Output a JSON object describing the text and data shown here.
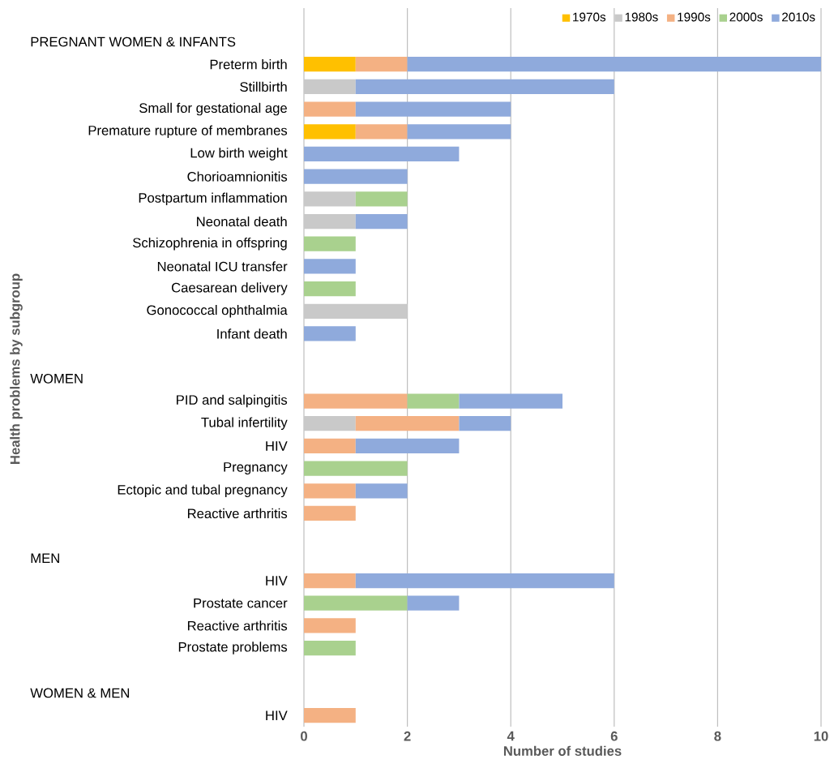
{
  "chart_data": {
    "type": "bar",
    "orientation": "horizontal",
    "stacked": true,
    "xlabel": "Number of studies",
    "ylabel": "Health problems by subgroup",
    "annotations": [
      "PREGNANT WOMEN & INFANTS",
      "WOMEN",
      "MEN",
      "WOMEN & MEN"
    ],
    "categories": [
      null,
      "Preterm birth",
      "Stillbirth",
      "Small for gestational age",
      "Premature rupture of membranes",
      "Low birth weight",
      "Chorioamnionitis",
      "Postpartum inflammation",
      "Neonatal death",
      "Schizophrenia in offspring",
      "Neonatal ICU transfer",
      "Caesarean delivery",
      "Gonococcal ophthalmia",
      "Infant death",
      null,
      null,
      "PID and salpingitis",
      "Tubal infertility",
      "HIV",
      "Pregnancy",
      "Ectopic and tubal pregnancy",
      "Reactive arthritis",
      null,
      null,
      "HIV",
      "Prostate cancer",
      "Reactive arthritis",
      "Prostate problems",
      null,
      null,
      "HIV"
    ],
    "series": [
      {
        "name": "1970s",
        "color": "#ffc000",
        "values": [
          null,
          1,
          null,
          null,
          1,
          null,
          null,
          null,
          null,
          null,
          null,
          null,
          null,
          null,
          null,
          null,
          null,
          null,
          null,
          null,
          null,
          null,
          null,
          null,
          null,
          null,
          null,
          null,
          null,
          null,
          null
        ]
      },
      {
        "name": "1980s",
        "color": "#c9c9c9",
        "values": [
          null,
          null,
          1,
          null,
          null,
          null,
          null,
          1,
          1,
          null,
          null,
          null,
          2,
          null,
          null,
          null,
          null,
          1,
          null,
          null,
          null,
          null,
          null,
          null,
          null,
          null,
          null,
          null,
          null,
          null,
          null
        ]
      },
      {
        "name": "1990s",
        "color": "#f4b183",
        "values": [
          null,
          1,
          null,
          1,
          1,
          null,
          null,
          null,
          null,
          null,
          null,
          null,
          null,
          null,
          null,
          null,
          2,
          2,
          1,
          null,
          1,
          1,
          null,
          null,
          1,
          null,
          1,
          null,
          null,
          null,
          1
        ]
      },
      {
        "name": "2000s",
        "color": "#a9d18e",
        "values": [
          null,
          null,
          null,
          null,
          null,
          null,
          null,
          1,
          null,
          1,
          null,
          1,
          null,
          null,
          null,
          null,
          1,
          null,
          null,
          2,
          null,
          null,
          null,
          null,
          null,
          2,
          null,
          1,
          null,
          null,
          null
        ]
      },
      {
        "name": "2010s",
        "color": "#8faadc",
        "values": [
          null,
          8,
          5,
          3,
          2,
          3,
          2,
          null,
          1,
          null,
          1,
          null,
          null,
          1,
          null,
          null,
          2,
          1,
          2,
          null,
          1,
          null,
          null,
          null,
          5,
          1,
          null,
          null,
          null,
          null,
          null
        ]
      }
    ],
    "xlim": [
      0,
      10
    ],
    "xticks": [
      0,
      2,
      4,
      6,
      8,
      10
    ],
    "grid": "x",
    "legend": "top right"
  }
}
